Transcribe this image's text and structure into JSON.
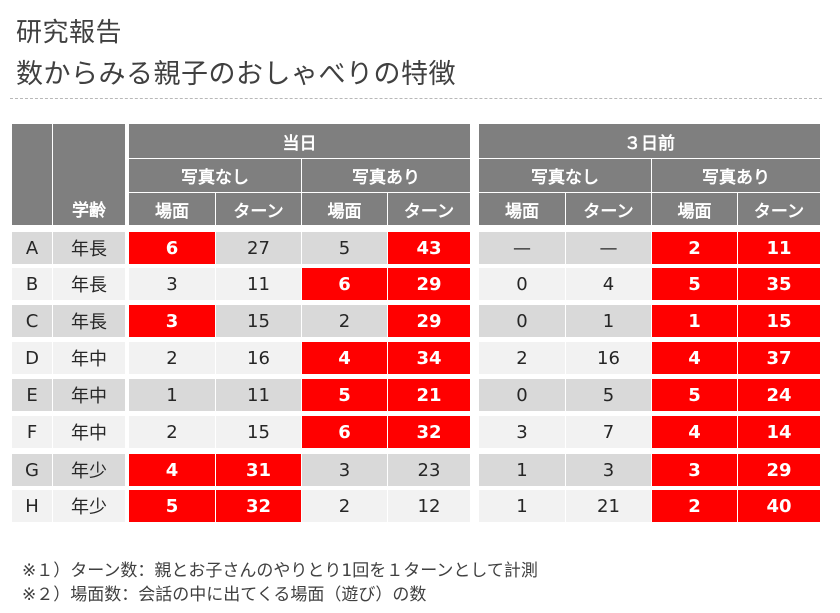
{
  "header": {
    "title_line1": "研究報告",
    "title_line2": "数からみる親子のおしゃべりの特徴"
  },
  "table": {
    "col_header_age": "学齢",
    "groups": [
      {
        "label": "当日",
        "subgroups": [
          {
            "label": "写真なし",
            "cols": [
              "場面",
              "ターン"
            ]
          },
          {
            "label": "写真あり",
            "cols": [
              "場面",
              "ターン"
            ]
          }
        ]
      },
      {
        "label": "３日前",
        "subgroups": [
          {
            "label": "写真なし",
            "cols": [
              "場面",
              "ターン"
            ]
          },
          {
            "label": "写真あり",
            "cols": [
              "場面",
              "ターン"
            ]
          }
        ]
      }
    ],
    "rows": [
      {
        "id": "A",
        "age": "年長",
        "values": [
          "6",
          "27",
          "5",
          "43",
          "—",
          "—",
          "2",
          "11"
        ],
        "highlight": [
          true,
          false,
          false,
          true,
          false,
          false,
          true,
          true
        ]
      },
      {
        "id": "B",
        "age": "年長",
        "values": [
          "3",
          "11",
          "6",
          "29",
          "0",
          "4",
          "5",
          "35"
        ],
        "highlight": [
          false,
          false,
          true,
          true,
          false,
          false,
          true,
          true
        ]
      },
      {
        "id": "C",
        "age": "年長",
        "values": [
          "3",
          "15",
          "2",
          "29",
          "0",
          "1",
          "1",
          "15"
        ],
        "highlight": [
          true,
          false,
          false,
          true,
          false,
          false,
          true,
          true
        ]
      },
      {
        "id": "D",
        "age": "年中",
        "values": [
          "2",
          "16",
          "4",
          "34",
          "2",
          "16",
          "4",
          "37"
        ],
        "highlight": [
          false,
          false,
          true,
          true,
          false,
          false,
          true,
          true
        ]
      },
      {
        "id": "E",
        "age": "年中",
        "values": [
          "1",
          "11",
          "5",
          "21",
          "0",
          "5",
          "5",
          "24"
        ],
        "highlight": [
          false,
          false,
          true,
          true,
          false,
          false,
          true,
          true
        ]
      },
      {
        "id": "F",
        "age": "年中",
        "values": [
          "2",
          "15",
          "6",
          "32",
          "3",
          "7",
          "4",
          "14"
        ],
        "highlight": [
          false,
          false,
          true,
          true,
          false,
          false,
          true,
          true
        ]
      },
      {
        "id": "G",
        "age": "年少",
        "values": [
          "4",
          "31",
          "3",
          "23",
          "1",
          "3",
          "3",
          "29"
        ],
        "highlight": [
          true,
          true,
          false,
          false,
          false,
          false,
          true,
          true
        ]
      },
      {
        "id": "H",
        "age": "年少",
        "values": [
          "5",
          "32",
          "2",
          "12",
          "1",
          "21",
          "2",
          "40"
        ],
        "highlight": [
          true,
          true,
          false,
          false,
          false,
          false,
          true,
          true
        ]
      }
    ]
  },
  "notes": [
    "※１）ターン数：親とお子さんのやりとり1回を１ターンとして計測",
    "※２）場面数：会話の中に出てくる場面（遊び）の数"
  ],
  "colors": {
    "header_bg": "#7f7f7f",
    "row_dark": "#d9d9d9",
    "row_light": "#f2f2f2",
    "highlight": "#ff0000"
  }
}
